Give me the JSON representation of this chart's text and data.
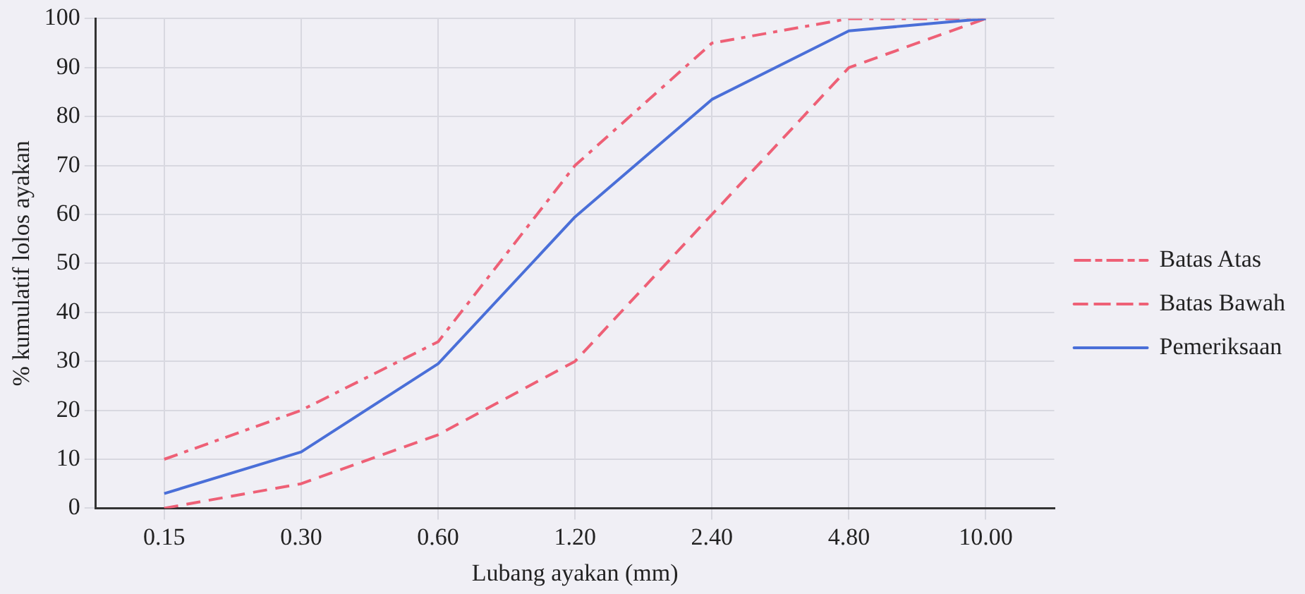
{
  "chart_data": {
    "type": "line",
    "xlabel": "Lubang ayakan (mm)",
    "ylabel": "% kumulatif lolos ayakan",
    "categories": [
      "0.15",
      "0.30",
      "0.60",
      "1.20",
      "2.40",
      "4.80",
      "10.00"
    ],
    "series": [
      {
        "name": "Batas Atas",
        "color": "#ee6076",
        "values": [
          10,
          20,
          34,
          70,
          95,
          100,
          100
        ],
        "line_style": "dashdot"
      },
      {
        "name": "Batas Bawah",
        "color": "#ee6076",
        "values": [
          0,
          5,
          15,
          30,
          60,
          90,
          100
        ],
        "line_style": "dashed"
      },
      {
        "name": "Pemeriksaan",
        "color": "#4a6fd8",
        "values": [
          3,
          11.5,
          29.5,
          59.5,
          83.5,
          97.5,
          100
        ],
        "line_style": "solid"
      }
    ],
    "ylim": [
      0,
      100
    ],
    "yticks": [
      0,
      10,
      20,
      30,
      40,
      50,
      60,
      70,
      80,
      90,
      100
    ],
    "grid": true,
    "legend": "right",
    "marker": "none"
  }
}
